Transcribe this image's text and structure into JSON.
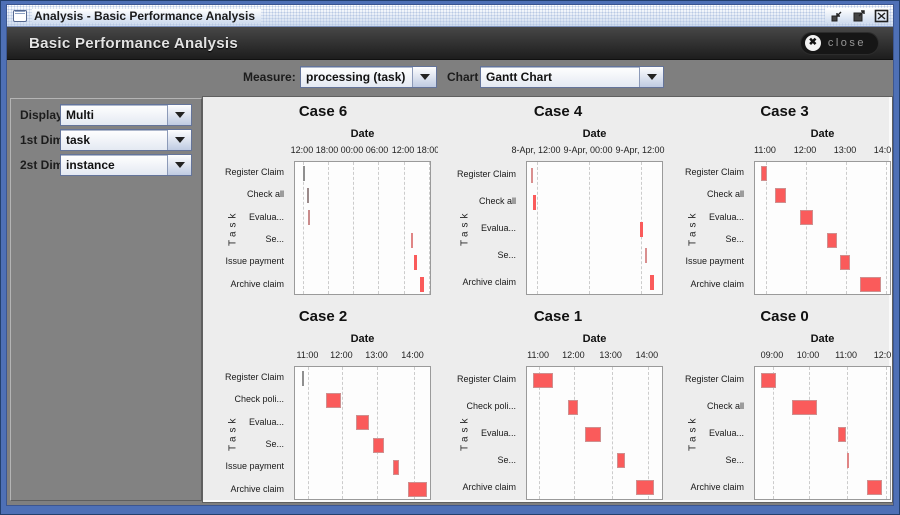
{
  "window": {
    "title": "Analysis - Basic Performance Analysis",
    "buttons": [
      "iconify-icon",
      "maximize-icon",
      "close-icon"
    ]
  },
  "header": {
    "title": "Basic Performance Analysis",
    "close_label": "close"
  },
  "toolbar": {
    "measure_label": "Measure:",
    "measure_value": "processing (task)",
    "chart_label": "Chart",
    "chart_value": "Gantt Chart"
  },
  "sidebar": {
    "fields": [
      {
        "label": "Display:",
        "value": "Multi"
      },
      {
        "label": "1st Dim:",
        "value": "task"
      },
      {
        "label": "2st Dim:",
        "value": "instance"
      }
    ]
  },
  "colors": {
    "frame_blue": "#4e70b6",
    "header_dark": "#1d1d1d",
    "panel_gray": "#7f7f7f",
    "chart_bg": "#ededed",
    "bar_red": "#fa5b5b"
  },
  "chart_data": [
    {
      "type": "bar",
      "subtype": "gantt",
      "title": "Case 6",
      "xlabel": "Date",
      "ylabel": "Task",
      "ticks": [
        {
          "label": "12:00",
          "pos": 0.058
        },
        {
          "label": "18:00",
          "pos": 0.241
        },
        {
          "label": "00:00",
          "pos": 0.423
        },
        {
          "label": "06:00",
          "pos": 0.606
        },
        {
          "label": "12:00",
          "pos": 0.796
        },
        {
          "label": "18:00",
          "pos": 0.978
        }
      ],
      "tasks": [
        "Register Claim",
        "Check all",
        "Evalua...",
        "Se...",
        "Issue payment",
        "Archive claim"
      ],
      "bars": [
        {
          "task": "Register Claim",
          "start": 0.055,
          "end": 0.068,
          "color": "#8f8f8f"
        },
        {
          "task": "Check all",
          "start": 0.09,
          "end": 0.104,
          "color": "#9a8a8a"
        },
        {
          "task": "Evalua...",
          "start": 0.098,
          "end": 0.113,
          "color": "#c98b8b"
        },
        {
          "task": "Se...",
          "start": 0.845,
          "end": 0.862,
          "color": "#e08585"
        },
        {
          "task": "Issue payment",
          "start": 0.867,
          "end": 0.893
        },
        {
          "task": "Archive claim",
          "start": 0.91,
          "end": 0.944
        }
      ]
    },
    {
      "type": "bar",
      "subtype": "gantt",
      "title": "Case 4",
      "xlabel": "Date",
      "ylabel": "Task",
      "ticks": [
        {
          "label": "8-Apr, 12:00",
          "pos": 0.073
        },
        {
          "label": "9-Apr, 00:00",
          "pos": 0.453
        },
        {
          "label": "9-Apr, 12:00",
          "pos": 0.832
        }
      ],
      "tasks": [
        "Register Claim",
        "Check all",
        "Evalua...",
        "Se...",
        "Archive claim"
      ],
      "bars": [
        {
          "task": "Register Claim",
          "start": 0.027,
          "end": 0.039,
          "color": "#d98f8f"
        },
        {
          "task": "Check all",
          "start": 0.042,
          "end": 0.068
        },
        {
          "task": "Evalua...",
          "start": 0.823,
          "end": 0.849
        },
        {
          "task": "Se...",
          "start": 0.858,
          "end": 0.87,
          "color": "#d98f8f"
        },
        {
          "task": "Archive claim",
          "start": 0.895,
          "end": 0.93
        }
      ]
    },
    {
      "type": "bar",
      "subtype": "gantt",
      "title": "Case 3",
      "xlabel": "Date",
      "ylabel": "Task",
      "ticks": [
        {
          "label": "11:00",
          "pos": 0.08
        },
        {
          "label": "12:00",
          "pos": 0.372
        },
        {
          "label": "13:00",
          "pos": 0.664
        },
        {
          "label": "14:00",
          "pos": 0.956
        }
      ],
      "tasks": [
        "Register Claim",
        "Check all",
        "Evalua...",
        "Se...",
        "Issue payment",
        "Archive claim"
      ],
      "bars": [
        {
          "task": "Register Claim",
          "start": 0.044,
          "end": 0.088
        },
        {
          "task": "Check all",
          "start": 0.146,
          "end": 0.226
        },
        {
          "task": "Evalua...",
          "start": 0.328,
          "end": 0.423
        },
        {
          "task": "Se...",
          "start": 0.526,
          "end": 0.599
        },
        {
          "task": "Issue payment",
          "start": 0.62,
          "end": 0.693
        },
        {
          "task": "Archive claim",
          "start": 0.766,
          "end": 0.92
        }
      ]
    },
    {
      "type": "bar",
      "subtype": "gantt",
      "title": "Case 2",
      "xlabel": "Date",
      "ylabel": "Task",
      "ticks": [
        {
          "label": "11:00",
          "pos": 0.098
        },
        {
          "label": "12:00",
          "pos": 0.346
        },
        {
          "label": "13:00",
          "pos": 0.602
        },
        {
          "label": "14:00",
          "pos": 0.865
        }
      ],
      "tasks": [
        "Register Claim",
        "Check poli...",
        "Evalua...",
        "Se...",
        "Issue payment",
        "Archive claim"
      ],
      "bars": [
        {
          "task": "Register Claim",
          "start": 0.049,
          "end": 0.058,
          "color": "#8f8f8f"
        },
        {
          "task": "Check poli...",
          "start": 0.226,
          "end": 0.338
        },
        {
          "task": "Evalua...",
          "start": 0.444,
          "end": 0.541
        },
        {
          "task": "Se...",
          "start": 0.571,
          "end": 0.647
        },
        {
          "task": "Issue payment",
          "start": 0.714,
          "end": 0.759
        },
        {
          "task": "Archive claim",
          "start": 0.827,
          "end": 0.962
        }
      ]
    },
    {
      "type": "bar",
      "subtype": "gantt",
      "title": "Case 1",
      "xlabel": "Date",
      "ylabel": "Task",
      "ticks": [
        {
          "label": "11:00",
          "pos": 0.088
        },
        {
          "label": "12:00",
          "pos": 0.346
        },
        {
          "label": "13:00",
          "pos": 0.618
        },
        {
          "label": "14:00",
          "pos": 0.882
        }
      ],
      "tasks": [
        "Register Claim",
        "Check poli...",
        "Evalua...",
        "Se...",
        "Archive claim"
      ],
      "bars": [
        {
          "task": "Register Claim",
          "start": 0.044,
          "end": 0.191
        },
        {
          "task": "Check poli...",
          "start": 0.301,
          "end": 0.375
        },
        {
          "task": "Evalua...",
          "start": 0.426,
          "end": 0.537
        },
        {
          "task": "Se...",
          "start": 0.654,
          "end": 0.713
        },
        {
          "task": "Archive claim",
          "start": 0.794,
          "end": 0.926
        }
      ]
    },
    {
      "type": "bar",
      "subtype": "gantt",
      "title": "Case 0",
      "xlabel": "Date",
      "ylabel": "Task",
      "ticks": [
        {
          "label": "09:00",
          "pos": 0.131
        },
        {
          "label": "10:00",
          "pos": 0.394
        },
        {
          "label": "11:00",
          "pos": 0.672
        },
        {
          "label": "12:00",
          "pos": 0.956
        }
      ],
      "tasks": [
        "Register Claim",
        "Check all",
        "Evalua...",
        "Se...",
        "Archive claim"
      ],
      "bars": [
        {
          "task": "Register Claim",
          "start": 0.044,
          "end": 0.153
        },
        {
          "task": "Check all",
          "start": 0.27,
          "end": 0.453
        },
        {
          "task": "Evalua...",
          "start": 0.606,
          "end": 0.664
        },
        {
          "task": "Se...",
          "start": 0.669,
          "end": 0.681,
          "color": "#e08585"
        },
        {
          "task": "Archive claim",
          "start": 0.818,
          "end": 0.927
        }
      ]
    }
  ]
}
